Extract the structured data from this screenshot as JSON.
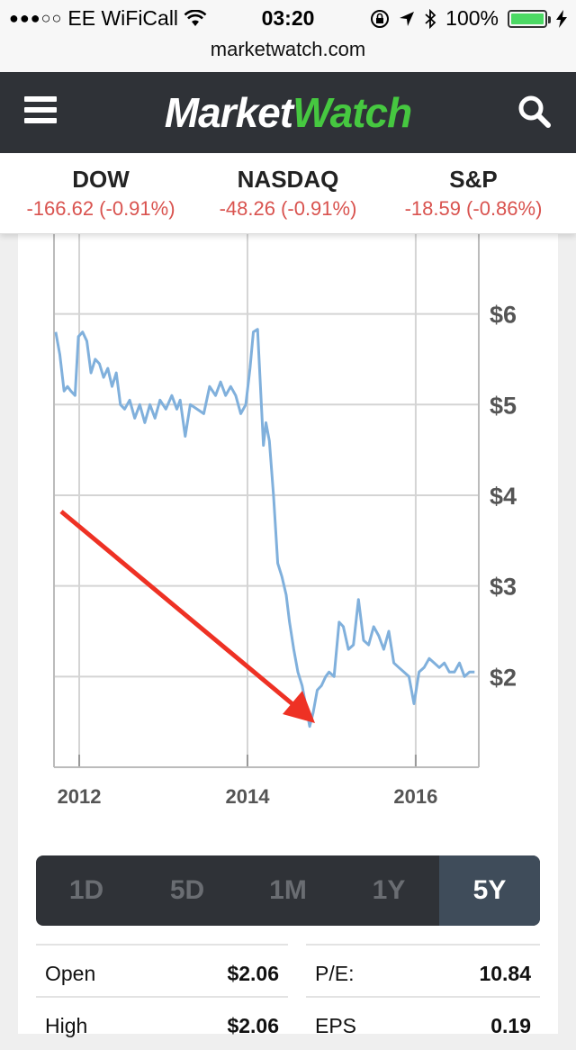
{
  "status": {
    "carrier": "EE WiFiCall",
    "time": "03:20",
    "battery": "100%",
    "signal_dots": "●●●○○"
  },
  "browser": {
    "url": "marketwatch.com"
  },
  "header": {
    "logo_part1": "Market",
    "logo_part2": "Watch",
    "brand_green": "#46c840",
    "bar_color": "#2f3237"
  },
  "indices": [
    {
      "name": "DOW",
      "change": "-166.62 (-0.91%)"
    },
    {
      "name": "NASDAQ",
      "change": "-48.26 (-0.91%)"
    },
    {
      "name": "S&P",
      "change": "-18.59 (-0.86%)"
    }
  ],
  "chart_data": {
    "type": "line",
    "title": "",
    "xlabel": "",
    "ylabel": "",
    "x_ticks": [
      "2012",
      "2014",
      "2016"
    ],
    "y_ticks": [
      "$6",
      "$5",
      "$4",
      "$3",
      "$2"
    ],
    "ylim": [
      1.0,
      6.9
    ],
    "xlim": [
      2011.7,
      2016.75
    ],
    "line_color": "#80b0dc",
    "annotation": "red arrow pointing to low",
    "arrow_color": "#ee3124",
    "series": [
      {
        "values": [
          [
            2011.72,
            5.8
          ],
          [
            2011.77,
            5.55
          ],
          [
            2011.82,
            5.15
          ],
          [
            2011.86,
            5.2
          ],
          [
            2011.9,
            5.15
          ],
          [
            2011.95,
            5.1
          ],
          [
            2011.99,
            5.75
          ],
          [
            2012.04,
            5.8
          ],
          [
            2012.09,
            5.7
          ],
          [
            2012.14,
            5.35
          ],
          [
            2012.19,
            5.5
          ],
          [
            2012.24,
            5.45
          ],
          [
            2012.29,
            5.3
          ],
          [
            2012.34,
            5.4
          ],
          [
            2012.39,
            5.2
          ],
          [
            2012.44,
            5.35
          ],
          [
            2012.49,
            5.0
          ],
          [
            2012.54,
            4.95
          ],
          [
            2012.6,
            5.05
          ],
          [
            2012.66,
            4.85
          ],
          [
            2012.72,
            5.0
          ],
          [
            2012.78,
            4.8
          ],
          [
            2012.84,
            5.0
          ],
          [
            2012.9,
            4.85
          ],
          [
            2012.96,
            5.05
          ],
          [
            2013.03,
            4.95
          ],
          [
            2013.1,
            5.1
          ],
          [
            2013.16,
            4.95
          ],
          [
            2013.2,
            5.05
          ],
          [
            2013.26,
            4.65
          ],
          [
            2013.32,
            5.0
          ],
          [
            2013.4,
            4.95
          ],
          [
            2013.48,
            4.9
          ],
          [
            2013.55,
            5.2
          ],
          [
            2013.62,
            5.1
          ],
          [
            2013.68,
            5.25
          ],
          [
            2013.74,
            5.1
          ],
          [
            2013.8,
            5.2
          ],
          [
            2013.86,
            5.1
          ],
          [
            2013.92,
            4.9
          ],
          [
            2013.98,
            5.0
          ],
          [
            2014.03,
            5.4
          ],
          [
            2014.07,
            5.8
          ],
          [
            2014.12,
            5.83
          ],
          [
            2014.16,
            5.1
          ],
          [
            2014.19,
            4.55
          ],
          [
            2014.22,
            4.8
          ],
          [
            2014.26,
            4.6
          ],
          [
            2014.31,
            4.0
          ],
          [
            2014.36,
            3.25
          ],
          [
            2014.41,
            3.1
          ],
          [
            2014.46,
            2.9
          ],
          [
            2014.5,
            2.6
          ],
          [
            2014.55,
            2.3
          ],
          [
            2014.6,
            2.05
          ],
          [
            2014.65,
            1.9
          ],
          [
            2014.7,
            1.65
          ],
          [
            2014.74,
            1.45
          ],
          [
            2014.78,
            1.6
          ],
          [
            2014.83,
            1.85
          ],
          [
            2014.88,
            1.9
          ],
          [
            2014.93,
            2.0
          ],
          [
            2014.97,
            2.05
          ],
          [
            2015.03,
            2.0
          ],
          [
            2015.09,
            2.6
          ],
          [
            2015.14,
            2.55
          ],
          [
            2015.2,
            2.3
          ],
          [
            2015.26,
            2.35
          ],
          [
            2015.32,
            2.85
          ],
          [
            2015.38,
            2.4
          ],
          [
            2015.44,
            2.35
          ],
          [
            2015.5,
            2.55
          ],
          [
            2015.56,
            2.45
          ],
          [
            2015.62,
            2.3
          ],
          [
            2015.68,
            2.5
          ],
          [
            2015.74,
            2.15
          ],
          [
            2015.8,
            2.1
          ],
          [
            2015.86,
            2.05
          ],
          [
            2015.92,
            2.0
          ],
          [
            2015.98,
            1.7
          ],
          [
            2016.04,
            2.05
          ],
          [
            2016.1,
            2.1
          ],
          [
            2016.16,
            2.2
          ],
          [
            2016.22,
            2.15
          ],
          [
            2016.28,
            2.1
          ],
          [
            2016.34,
            2.15
          ],
          [
            2016.4,
            2.05
          ],
          [
            2016.46,
            2.05
          ],
          [
            2016.52,
            2.15
          ],
          [
            2016.58,
            2.0
          ],
          [
            2016.64,
            2.05
          ],
          [
            2016.7,
            2.05
          ]
        ]
      }
    ]
  },
  "ranges": [
    {
      "label": "1D",
      "active": false
    },
    {
      "label": "5D",
      "active": false
    },
    {
      "label": "1M",
      "active": false
    },
    {
      "label": "1Y",
      "active": false
    },
    {
      "label": "5Y",
      "active": true
    }
  ],
  "stats": {
    "open_label": "Open",
    "open_value": "$2.06",
    "pe_label": "P/E:",
    "pe_value": "10.84",
    "high_label": "High",
    "high_value": "$2.06",
    "eps_label": "EPS",
    "eps_value": "0.19"
  }
}
